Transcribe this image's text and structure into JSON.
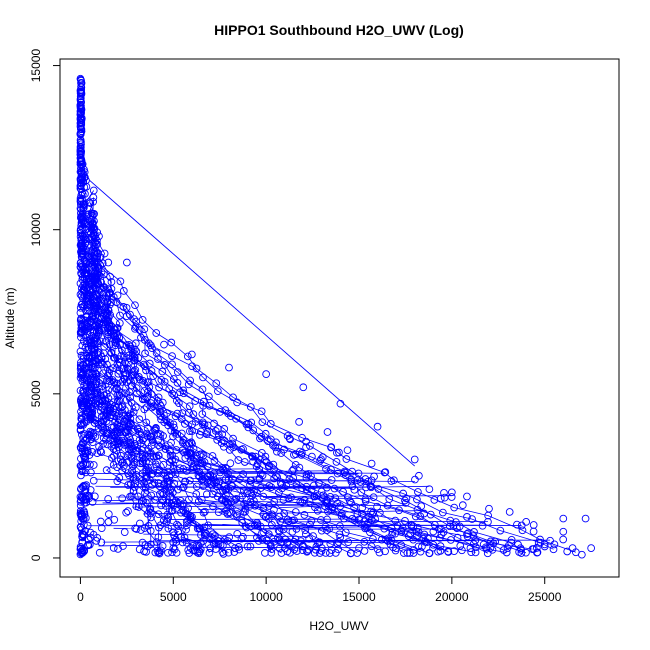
{
  "chart_data": {
    "type": "scatter",
    "title": "HIPPO1 Southbound H2O_UWV (Log)",
    "xlabel": "H2O_UWV",
    "ylabel": "Altitude (m)",
    "xlim": [
      -1100,
      29000
    ],
    "ylim": [
      -580,
      15200
    ],
    "xticks": [
      0,
      5000,
      10000,
      15000,
      20000,
      25000
    ],
    "yticks": [
      0,
      5000,
      10000,
      15000
    ],
    "xtick_labels": [
      "0",
      "5000",
      "10000",
      "15000",
      "20000",
      "25000"
    ],
    "ytick_labels": [
      "0",
      "5000",
      "10000",
      "15000"
    ],
    "series_color": "#0000ff",
    "marker": "open-circle",
    "connected_lines": true,
    "grid": false,
    "legend": "none",
    "series": [
      {
        "envelope_points": [
          [
            0,
            14600
          ],
          [
            20,
            14000
          ],
          [
            60,
            13000
          ],
          [
            120,
            12000
          ],
          [
            300,
            11500
          ],
          [
            600,
            10500
          ],
          [
            1000,
            9800
          ],
          [
            1500,
            9000
          ],
          [
            2500,
            9000
          ],
          [
            2000,
            8000
          ],
          [
            3000,
            7200
          ],
          [
            4500,
            6500
          ],
          [
            6000,
            6200
          ],
          [
            8000,
            5800
          ],
          [
            10000,
            5600
          ],
          [
            12000,
            5200
          ],
          [
            14000,
            4700
          ],
          [
            16000,
            4000
          ],
          [
            18000,
            3000
          ],
          [
            20000,
            2000
          ],
          [
            22000,
            1500
          ],
          [
            24000,
            1100
          ],
          [
            26000,
            800
          ],
          [
            27500,
            300
          ],
          [
            27000,
            100
          ]
        ],
        "long_segment": [
          [
            500,
            11500
          ],
          [
            18000,
            2800
          ]
        ],
        "low_level_points": [
          [
            3500,
            400
          ],
          [
            5000,
            300
          ],
          [
            7000,
            300
          ],
          [
            9000,
            350
          ],
          [
            11000,
            300
          ],
          [
            13000,
            300
          ],
          [
            15000,
            300
          ],
          [
            17000,
            300
          ],
          [
            19000,
            400
          ],
          [
            21000,
            300
          ],
          [
            23000,
            300
          ],
          [
            25000,
            350
          ],
          [
            26500,
            300
          ],
          [
            27200,
            1200
          ],
          [
            26000,
            1200
          ]
        ]
      }
    ]
  }
}
